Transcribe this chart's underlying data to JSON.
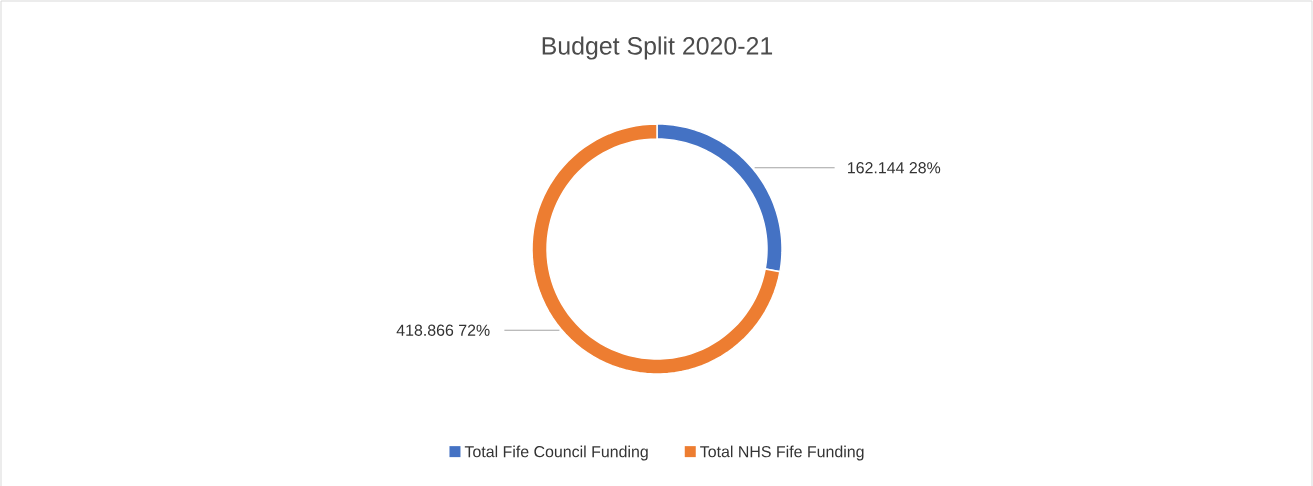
{
  "chart_data": {
    "type": "donut",
    "title": "Budget Split 2020-21",
    "categories": [
      "Total Fife Council Funding",
      "Total NHS Fife Funding"
    ],
    "values": [
      162.144,
      418.866
    ],
    "colors": [
      "#4472c4",
      "#ed7d31"
    ],
    "value_labels": [
      "162.144 28%",
      "418.866 72%"
    ],
    "legend": "bottom"
  }
}
